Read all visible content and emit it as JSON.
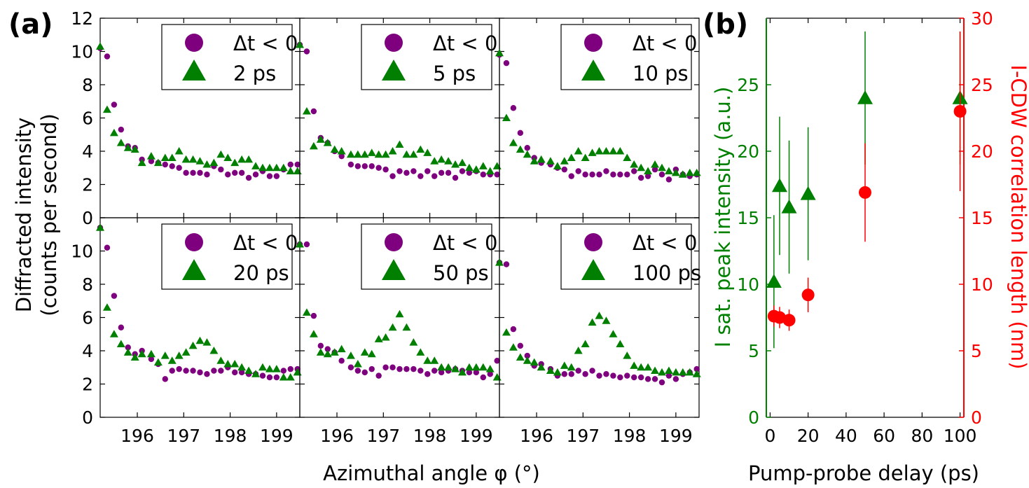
{
  "figure": {
    "panel_a_label": "(a)",
    "panel_b_label": "(b)",
    "a_xlabel": "Azimuthal angle φ (°)",
    "a_ylabel_line1": "Diffracted intensity",
    "a_ylabel_line2": "(counts per second)",
    "b_xlabel": "Pump-probe delay (ps)",
    "b_ylabel_left": "I sat. peak intensity (a.u.)",
    "b_ylabel_right": "I-CDW correlation length (nm)",
    "legend_ref_label": "Δt < 0",
    "colors": {
      "ref": "#7f007f",
      "pumped": "#007f00",
      "peak": "#008000",
      "corr": "#ff0000"
    }
  },
  "chart_data": [
    {
      "type": "scatter",
      "grid": false,
      "xlim": [
        195.2,
        199.5
      ],
      "ylim": [
        0,
        12
      ],
      "xticks": [
        196,
        197,
        198,
        199
      ],
      "yticks": [
        0,
        2,
        4,
        6,
        8,
        10,
        12
      ],
      "panels": [
        {
          "legend": [
            "Δt < 0",
            "2 ps"
          ],
          "ref": {
            "x": [
              195.2,
              195.35,
              195.5,
              195.65,
              195.8,
              195.95,
              196.1,
              196.3,
              196.45,
              196.6,
              196.75,
              196.9,
              197.05,
              197.2,
              197.35,
              197.5,
              197.65,
              197.8,
              197.95,
              198.1,
              198.25,
              198.4,
              198.55,
              198.7,
              198.85,
              199.0,
              199.15,
              199.3,
              199.45
            ],
            "y": [
              10.2,
              9.7,
              6.8,
              5.3,
              4.3,
              4.2,
              3.5,
              3.4,
              3.3,
              3.2,
              3.1,
              3.0,
              2.7,
              2.7,
              2.7,
              2.6,
              3.1,
              2.9,
              2.6,
              2.7,
              2.7,
              2.4,
              2.6,
              2.8,
              2.5,
              2.5,
              2.9,
              3.2,
              3.2
            ]
          },
          "pumped": {
            "x": [
              195.2,
              195.35,
              195.5,
              195.65,
              195.8,
              195.95,
              196.1,
              196.3,
              196.45,
              196.6,
              196.75,
              196.9,
              197.05,
              197.2,
              197.35,
              197.5,
              197.65,
              197.8,
              197.95,
              198.1,
              198.25,
              198.4,
              198.55,
              198.7,
              198.85,
              199.0,
              199.15,
              199.3,
              199.45
            ],
            "y": [
              10.3,
              6.5,
              5.1,
              4.5,
              4.2,
              4.1,
              3.3,
              3.7,
              3.3,
              3.6,
              3.6,
              4.0,
              3.5,
              3.5,
              3.4,
              3.2,
              3.3,
              3.8,
              3.6,
              3.3,
              3.5,
              3.5,
              3.1,
              3.0,
              3.0,
              3.0,
              3.0,
              2.8,
              2.8
            ]
          }
        },
        {
          "legend": [
            "Δt < 0",
            "5 ps"
          ],
          "ref": {
            "x": [
              195.2,
              195.35,
              195.5,
              195.65,
              195.8,
              195.95,
              196.1,
              196.3,
              196.45,
              196.6,
              196.75,
              196.9,
              197.05,
              197.2,
              197.35,
              197.5,
              197.65,
              197.8,
              197.95,
              198.1,
              198.25,
              198.4,
              198.55,
              198.7,
              198.85,
              199.0,
              199.15,
              199.3,
              199.45
            ],
            "y": [
              10.4,
              10.0,
              6.4,
              4.8,
              4.5,
              4.0,
              3.7,
              3.2,
              3.1,
              3.1,
              3.1,
              3.0,
              2.9,
              2.5,
              2.8,
              2.7,
              2.8,
              2.5,
              2.8,
              2.5,
              2.7,
              2.7,
              2.4,
              2.8,
              2.7,
              2.8,
              2.6,
              2.6,
              2.6
            ]
          },
          "pumped": {
            "x": [
              195.2,
              195.35,
              195.5,
              195.65,
              195.8,
              195.95,
              196.1,
              196.3,
              196.45,
              196.6,
              196.75,
              196.9,
              197.05,
              197.2,
              197.35,
              197.5,
              197.65,
              197.8,
              197.95,
              198.1,
              198.25,
              198.4,
              198.55,
              198.7,
              198.85,
              199.0,
              199.15,
              199.3,
              199.45
            ],
            "y": [
              10.4,
              6.4,
              4.3,
              4.7,
              4.5,
              4.1,
              4.0,
              3.8,
              3.8,
              3.8,
              3.9,
              3.8,
              3.8,
              4.0,
              4.4,
              3.8,
              3.8,
              4.1,
              3.9,
              3.4,
              3.5,
              3.4,
              3.2,
              3.3,
              3.0,
              2.9,
              3.1,
              2.8,
              3.1
            ]
          }
        },
        {
          "legend": [
            "Δt < 0",
            "10 ps"
          ],
          "ref": {
            "x": [
              195.2,
              195.35,
              195.5,
              195.65,
              195.8,
              195.95,
              196.1,
              196.3,
              196.45,
              196.6,
              196.75,
              196.9,
              197.05,
              197.2,
              197.35,
              197.5,
              197.65,
              197.8,
              197.95,
              198.1,
              198.25,
              198.4,
              198.55,
              198.7,
              198.85,
              199.0,
              199.15,
              199.3,
              199.45
            ],
            "y": [
              9.8,
              9.3,
              6.6,
              5.1,
              4.2,
              3.6,
              3.3,
              3.2,
              3.0,
              2.9,
              2.5,
              2.8,
              2.6,
              2.6,
              2.6,
              2.8,
              2.6,
              2.6,
              2.6,
              2.8,
              2.4,
              2.5,
              2.9,
              2.6,
              2.3,
              2.9,
              2.6,
              2.5,
              2.6
            ]
          },
          "pumped": {
            "x": [
              195.2,
              195.35,
              195.5,
              195.65,
              195.8,
              195.95,
              196.1,
              196.3,
              196.45,
              196.6,
              196.75,
              196.9,
              197.05,
              197.2,
              197.35,
              197.5,
              197.65,
              197.8,
              197.95,
              198.1,
              198.25,
              198.4,
              198.55,
              198.7,
              198.85,
              199.0,
              199.15,
              199.3,
              199.45
            ],
            "y": [
              9.9,
              6.0,
              4.5,
              4.1,
              3.8,
              3.4,
              3.5,
              3.4,
              3.1,
              3.4,
              3.6,
              4.0,
              3.6,
              3.9,
              4.0,
              4.0,
              4.0,
              4.0,
              3.6,
              3.2,
              3.0,
              2.8,
              3.2,
              3.0,
              2.8,
              2.7,
              2.6,
              2.7,
              2.7
            ]
          }
        },
        {
          "legend": [
            "Δt < 0",
            "20 ps"
          ],
          "ref": {
            "x": [
              195.2,
              195.35,
              195.5,
              195.65,
              195.8,
              195.95,
              196.1,
              196.3,
              196.45,
              196.6,
              196.75,
              196.9,
              197.05,
              197.2,
              197.35,
              197.5,
              197.65,
              197.8,
              197.95,
              198.1,
              198.25,
              198.4,
              198.55,
              198.7,
              198.85,
              199.0,
              199.15,
              199.3,
              199.45
            ],
            "y": [
              11.4,
              10.2,
              7.3,
              5.4,
              4.2,
              3.8,
              4.0,
              3.5,
              3.2,
              2.3,
              2.8,
              2.9,
              2.8,
              2.8,
              2.7,
              2.6,
              2.8,
              2.8,
              3.0,
              2.7,
              2.7,
              2.6,
              2.6,
              2.5,
              2.4,
              2.4,
              2.8,
              2.9,
              2.9
            ]
          },
          "pumped": {
            "x": [
              195.2,
              195.35,
              195.5,
              195.65,
              195.8,
              195.95,
              196.1,
              196.3,
              196.45,
              196.6,
              196.75,
              196.9,
              197.05,
              197.2,
              197.35,
              197.5,
              197.65,
              197.8,
              197.95,
              198.1,
              198.25,
              198.4,
              198.55,
              198.7,
              198.85,
              199.0,
              199.15,
              199.3,
              199.45
            ],
            "y": [
              11.4,
              6.6,
              5.0,
              4.4,
              3.9,
              3.6,
              3.8,
              3.8,
              3.3,
              3.7,
              3.4,
              3.7,
              3.9,
              4.3,
              4.6,
              4.5,
              4.0,
              3.4,
              3.2,
              3.2,
              3.0,
              2.8,
              2.6,
              3.0,
              2.9,
              2.9,
              2.4,
              2.4,
              2.7
            ]
          }
        },
        {
          "legend": [
            "Δt < 0",
            "50 ps"
          ],
          "ref": {
            "x": [
              195.2,
              195.35,
              195.5,
              195.65,
              195.8,
              195.95,
              196.1,
              196.3,
              196.45,
              196.6,
              196.75,
              196.9,
              197.05,
              197.2,
              197.35,
              197.5,
              197.65,
              197.8,
              197.95,
              198.1,
              198.25,
              198.4,
              198.55,
              198.7,
              198.85,
              199.0,
              199.15,
              199.3,
              199.45
            ],
            "y": [
              10.4,
              10.4,
              6.1,
              4.3,
              4.1,
              3.9,
              3.4,
              3.0,
              2.8,
              2.7,
              2.9,
              2.5,
              3.0,
              3.0,
              2.9,
              2.9,
              2.9,
              2.8,
              2.6,
              2.8,
              2.7,
              2.8,
              2.9,
              2.8,
              2.7,
              2.7,
              2.4,
              2.6,
              3.4
            ]
          },
          "pumped": {
            "x": [
              195.2,
              195.35,
              195.5,
              195.65,
              195.8,
              195.95,
              196.1,
              196.3,
              196.45,
              196.6,
              196.75,
              196.9,
              197.05,
              197.2,
              197.35,
              197.5,
              197.65,
              197.8,
              197.95,
              198.1,
              198.25,
              198.4,
              198.55,
              198.7,
              198.85,
              199.0,
              199.15,
              199.3,
              199.45
            ],
            "y": [
              10.4,
              6.3,
              5.0,
              3.9,
              3.8,
              3.9,
              4.1,
              3.7,
              3.2,
              3.9,
              3.8,
              4.7,
              4.8,
              5.4,
              6.2,
              5.4,
              4.5,
              3.9,
              3.4,
              3.4,
              3.0,
              3.0,
              2.9,
              2.7,
              3.0,
              3.0,
              3.0,
              2.9,
              2.4
            ]
          }
        },
        {
          "legend": [
            "Δt < 0",
            "100 ps"
          ],
          "ref": {
            "x": [
              195.2,
              195.35,
              195.5,
              195.65,
              195.8,
              195.95,
              196.1,
              196.3,
              196.45,
              196.6,
              196.75,
              196.9,
              197.05,
              197.2,
              197.35,
              197.5,
              197.65,
              197.8,
              197.95,
              198.1,
              198.25,
              198.4,
              198.55,
              198.7,
              198.85,
              199.0,
              199.15,
              199.3,
              199.45
            ],
            "y": [
              9.3,
              9.2,
              5.3,
              4.3,
              3.7,
              3.1,
              3.2,
              2.9,
              2.5,
              2.6,
              2.6,
              2.8,
              2.6,
              2.8,
              2.5,
              2.6,
              2.5,
              2.4,
              2.5,
              2.4,
              2.4,
              2.3,
              2.3,
              2.1,
              2.5,
              2.3,
              2.6,
              2.7,
              2.9
            ]
          },
          "pumped": {
            "x": [
              195.2,
              195.35,
              195.5,
              195.65,
              195.8,
              195.95,
              196.1,
              196.3,
              196.45,
              196.6,
              196.75,
              196.9,
              197.05,
              197.2,
              197.35,
              197.5,
              197.65,
              197.8,
              197.95,
              198.1,
              198.25,
              198.4,
              198.55,
              198.7,
              198.85,
              199.0,
              199.15,
              199.3,
              199.45
            ],
            "y": [
              9.3,
              5.1,
              4.2,
              3.6,
              3.4,
              3.3,
              3.0,
              2.8,
              2.7,
              3.1,
              3.0,
              4.0,
              4.4,
              5.7,
              6.1,
              5.8,
              5.0,
              4.4,
              3.7,
              3.1,
              3.0,
              3.0,
              2.8,
              2.7,
              2.8,
              2.7,
              2.7,
              2.7,
              2.6
            ]
          }
        }
      ]
    },
    {
      "type": "scatter",
      "grid": false,
      "xlim": [
        -2,
        102
      ],
      "xticks": [
        0,
        20,
        40,
        60,
        80,
        100
      ],
      "left": {
        "ylim": [
          0,
          30
        ],
        "yticks": [
          0,
          5,
          10,
          15,
          20,
          25
        ],
        "x": [
          2,
          5,
          10,
          20,
          50,
          100
        ],
        "y": [
          10.2,
          17.4,
          15.8,
          16.8,
          24.0,
          24.0
        ],
        "yerr": [
          5.0,
          5.2,
          5.0,
          5.0,
          5.0,
          5.0
        ]
      },
      "right": {
        "ylim": [
          0,
          30
        ],
        "yticks": [
          0,
          5,
          10,
          15,
          20,
          25,
          30
        ],
        "x": [
          2,
          5,
          10,
          20,
          50,
          100
        ],
        "y": [
          7.6,
          7.5,
          7.3,
          9.2,
          16.9,
          23.0
        ],
        "yerr": [
          0.8,
          0.8,
          0.8,
          1.3,
          3.7,
          6.0
        ]
      }
    }
  ]
}
